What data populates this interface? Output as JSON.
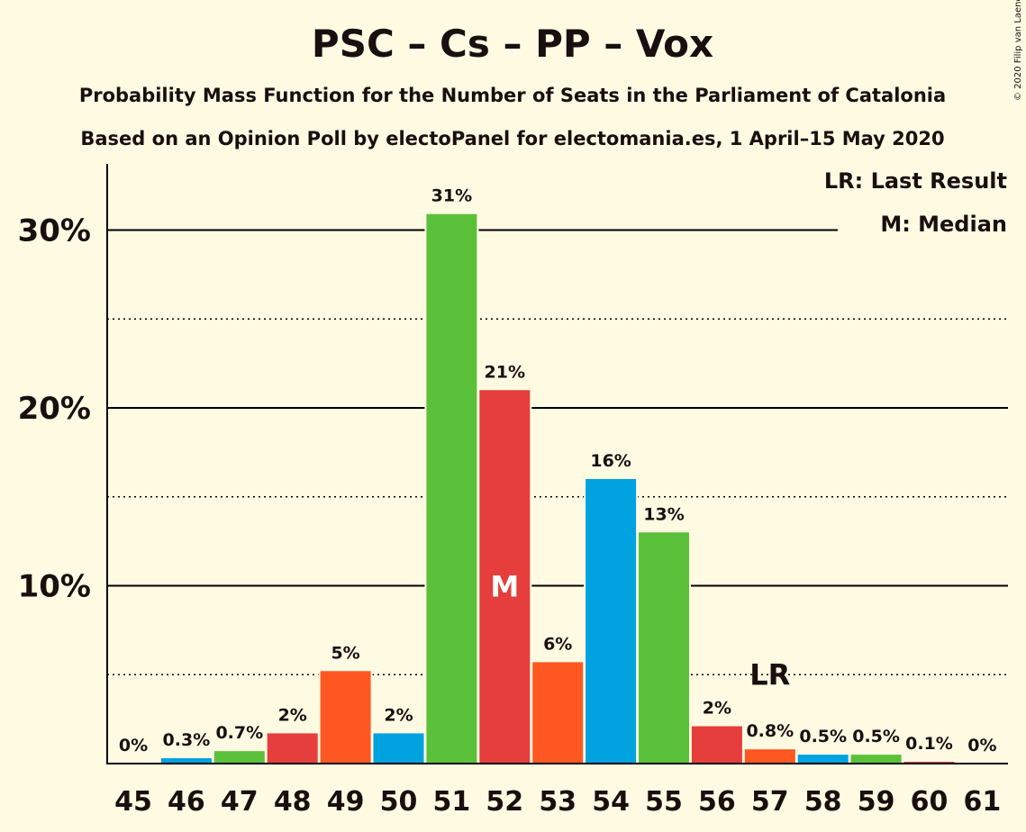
{
  "chart_data": {
    "type": "bar",
    "title": "PSC – Cs – PP – Vox",
    "subtitle": "Probability Mass Function for the Number of Seats in the Parliament of Catalonia",
    "subtitle2": "Based on an Opinion Poll by electoPanel for electomania.es, 1 April–15 May 2020",
    "copyright": "© 2020 Filip van Laenen",
    "legend": {
      "last_result": "LR: Last Result",
      "median": "M: Median"
    },
    "ylim": [
      0,
      32
    ],
    "yticks": [
      {
        "value": 10,
        "label": "10%"
      },
      {
        "value": 20,
        "label": "20%"
      },
      {
        "value": 30,
        "label": "30%"
      }
    ],
    "minor_gridlines": [
      5,
      15,
      25
    ],
    "categories": [
      "45",
      "46",
      "47",
      "48",
      "49",
      "50",
      "51",
      "52",
      "53",
      "54",
      "55",
      "56",
      "57",
      "58",
      "59",
      "60",
      "61"
    ],
    "values": [
      0,
      0.3,
      0.7,
      1.7,
      5.2,
      1.7,
      30.9,
      21.0,
      5.7,
      16.0,
      13.0,
      2.1,
      0.8,
      0.5,
      0.5,
      0.1,
      0
    ],
    "labels": [
      "0%",
      "0.3%",
      "0.7%",
      "2%",
      "5%",
      "2%",
      "31%",
      "21%",
      "6%",
      "16%",
      "13%",
      "2%",
      "0.8%",
      "0.5%",
      "0.5%",
      "0.1%",
      "0%"
    ],
    "colors": [
      "#5BC13A",
      "#00A2E0",
      "#5BC13A",
      "#E53E3C",
      "#FF5722",
      "#00A2E0",
      "#5BC13A",
      "#E53E3C",
      "#FF5722",
      "#00A2E0",
      "#5BC13A",
      "#E53E3C",
      "#FF5722",
      "#00A2E0",
      "#5BC13A",
      "#E53E3C",
      "#FF5722"
    ],
    "median_category": "52",
    "median_marker": "M",
    "last_result_category": "57",
    "last_result_marker": "LR"
  }
}
